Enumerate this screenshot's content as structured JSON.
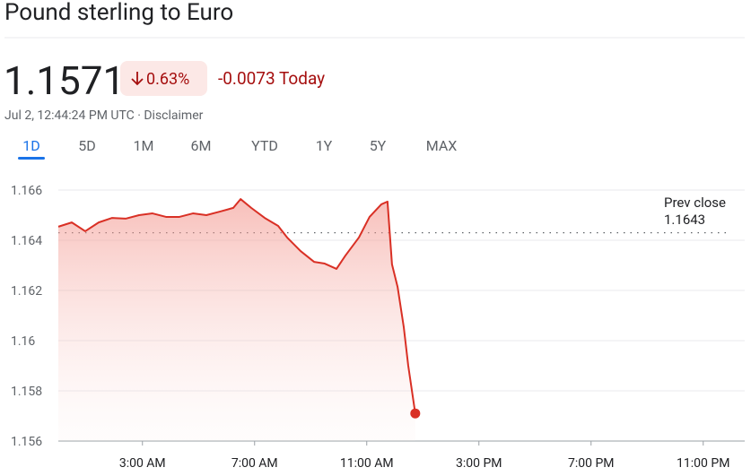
{
  "header": {
    "title": "Pound sterling to Euro",
    "price": "1.1571",
    "change_percent": "0.63%",
    "change": "-0.0073 Today",
    "timestamp": "Jul 2, 12:44:24 PM UTC · Disclaimer",
    "tabs": [
      "1D",
      "5D",
      "1M",
      "6M",
      "YTD",
      "1Y",
      "5Y",
      "MAX"
    ]
  },
  "chart_data": {
    "type": "line",
    "x": [
      0,
      0.48,
      0.96,
      1.44,
      1.92,
      2.4,
      2.88,
      3.36,
      3.84,
      4.32,
      4.8,
      5.28,
      5.76,
      6.24,
      6.5,
      6.88,
      7.36,
      7.84,
      8.16,
      8.64,
      9.12,
      9.5,
      9.92,
      10.24,
      10.72,
      11.1,
      11.52,
      11.74,
      11.9,
      12.1,
      12.32,
      12.48,
      12.73
    ],
    "series": [
      {
        "color": "#d93025",
        "values": [
          1.16454,
          1.16471,
          1.16436,
          1.16471,
          1.16489,
          1.16486,
          1.165,
          1.16507,
          1.16493,
          1.16493,
          1.16507,
          1.165,
          1.16514,
          1.16529,
          1.16564,
          1.16529,
          1.16489,
          1.16457,
          1.16411,
          1.16357,
          1.16314,
          1.16307,
          1.16286,
          1.16339,
          1.16411,
          1.16493,
          1.16543,
          1.16554,
          1.16304,
          1.16214,
          1.16054,
          1.159,
          1.1571
        ]
      }
    ],
    "xlim": [
      0,
      24
    ],
    "xticks": [
      {
        "value": 3,
        "label": "3:00 AM"
      },
      {
        "value": 7,
        "label": "7:00 AM"
      },
      {
        "value": 11,
        "label": "11:00 AM"
      },
      {
        "value": 15,
        "label": "3:00 PM"
      },
      {
        "value": 19,
        "label": "7:00 PM"
      },
      {
        "value": 23,
        "label": "11:00 PM"
      }
    ],
    "ylim": [
      1.156,
      1.166
    ],
    "yticks": [
      1.156,
      1.158,
      1.16,
      1.162,
      1.164,
      1.166
    ],
    "grid": true,
    "prev_close": {
      "label": "Prev close",
      "value": 1.1643
    }
  }
}
